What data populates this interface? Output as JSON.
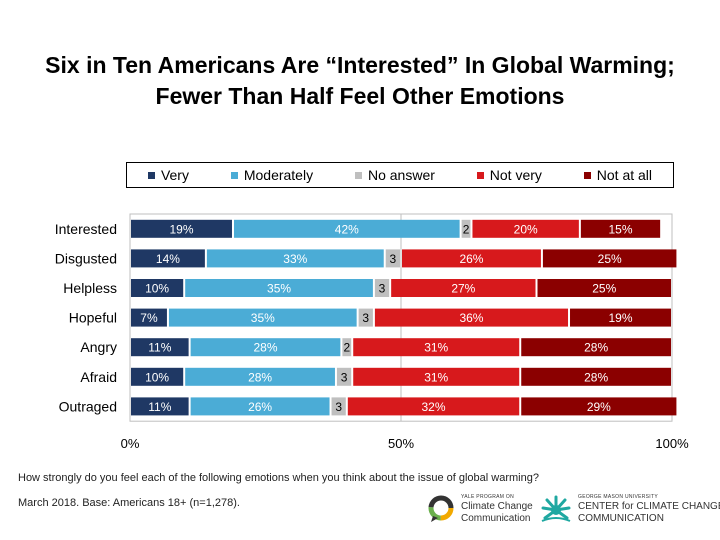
{
  "chart_data": {
    "type": "bar",
    "orientation": "horizontal-stacked-100",
    "title_lines": [
      "Six in Ten Americans Are “Interested” In Global Warming;",
      "Fewer Than Half Feel Other Emotions"
    ],
    "categories": [
      "Interested",
      "Disgusted",
      "Helpless",
      "Hopeful",
      "Angry",
      "Afraid",
      "Outraged"
    ],
    "series": [
      {
        "name": "Very",
        "color": "#1f3864",
        "values": [
          19,
          14,
          10,
          7,
          11,
          10,
          11
        ],
        "labels": [
          "19%",
          "14%",
          "10%",
          "7%",
          "11%",
          "10%",
          "11%"
        ],
        "label_color": "#ffffff"
      },
      {
        "name": "Moderately",
        "color": "#4bacd6",
        "values": [
          42,
          33,
          35,
          35,
          28,
          28,
          26
        ],
        "labels": [
          "42%",
          "33%",
          "35%",
          "35%",
          "28%",
          "28%",
          "26%"
        ],
        "label_color": "#ffffff"
      },
      {
        "name": "No answer",
        "color": "#bfbfbf",
        "values": [
          2,
          3,
          3,
          3,
          2,
          3,
          3
        ],
        "labels": [
          "2",
          "3",
          "3",
          "3",
          "2",
          "3",
          "3"
        ],
        "label_color": "#000000"
      },
      {
        "name": "Not very",
        "color": "#d7191c",
        "values": [
          20,
          26,
          27,
          36,
          31,
          31,
          32
        ],
        "labels": [
          "20%",
          "26%",
          "27%",
          "36%",
          "31%",
          "31%",
          "32%"
        ],
        "label_color": "#ffffff"
      },
      {
        "name": "Not at all",
        "color": "#8b0000",
        "values": [
          15,
          25,
          25,
          19,
          28,
          28,
          29
        ],
        "labels": [
          "15%",
          "25%",
          "25%",
          "19%",
          "28%",
          "28%",
          "29%"
        ],
        "label_color": "#ffffff"
      }
    ],
    "xlim": [
      0,
      100
    ],
    "xticks": [
      "0%",
      "50%",
      "100%"
    ],
    "gridlines": true,
    "legend_position": "top"
  },
  "footer": {
    "question": "How strongly do you feel each of the following emotions when you think about the issue of global warming?",
    "base": "March 2018. Base: Americans 18+ (n=1,278)."
  },
  "logos": {
    "yale_small": "YALE PROGRAM ON",
    "yale_line1": "Climate Change",
    "yale_line2": "Communication",
    "gmu_small": "GEORGE MASON UNIVERSITY",
    "gmu_line1": "CENTER for CLIMATE CHANGE",
    "gmu_line2": "COMMUNICATION"
  }
}
